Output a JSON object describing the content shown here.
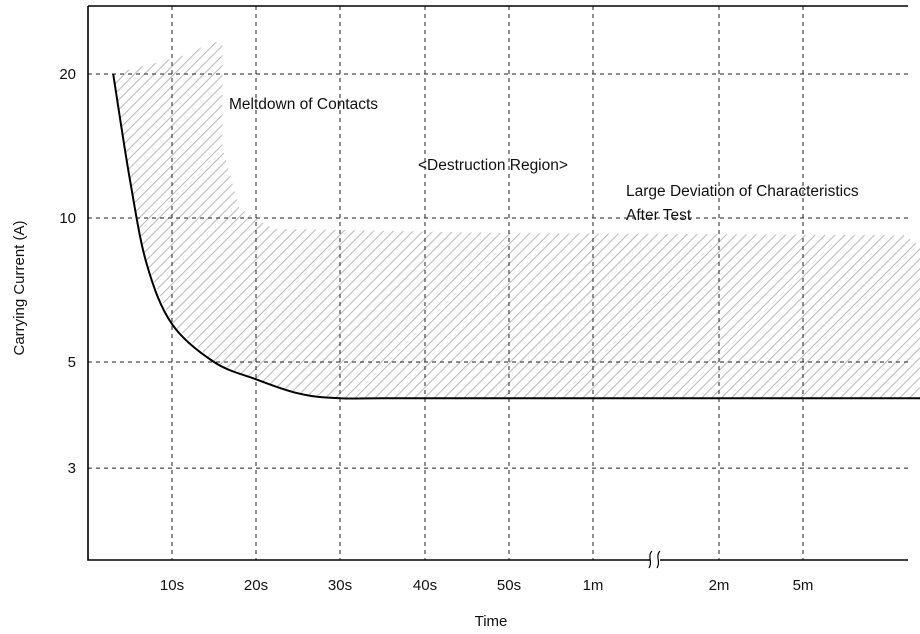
{
  "chart_data": {
    "type": "area",
    "xlabel": "Time",
    "ylabel": "Carrying Current (A)",
    "x_scale": "categorical (non-linear, axis break between 1m and 2m)",
    "y_scale": "log",
    "x_ticks": [
      "10s",
      "20s",
      "30s",
      "40s",
      "50s",
      "1m",
      "2m",
      "5m"
    ],
    "y_ticks": [
      3,
      5,
      10,
      20
    ],
    "axis_break_after": "1m",
    "grid": true,
    "annotations": [
      "Meltdown of Contacts",
      "<Destruction Region>",
      "Large Deviation of Characteristics",
      "After Test"
    ],
    "series": [
      {
        "kind": "limit-curve",
        "points": [
          {
            "x": 0.3,
            "y": 20
          },
          {
            "x": 0.5,
            "y": 12
          },
          {
            "x": 0.7,
            "y": 8
          },
          {
            "x": 1.0,
            "y": 6
          },
          {
            "x": 1.5,
            "y": 5
          },
          {
            "x": 2.0,
            "y": 4.6
          },
          {
            "x": 2.5,
            "y": 4.3
          },
          {
            "x": 3.0,
            "y": 4.2
          },
          {
            "x": 4.0,
            "y": 4.2
          },
          {
            "x": 9.5,
            "y": 4.2
          }
        ]
      },
      {
        "kind": "destruction-region-upper-boundary",
        "points": [
          {
            "x": 0.3,
            "y": 20
          },
          {
            "x": 1.2,
            "y": 22
          },
          {
            "x": 1.4,
            "y": 23
          },
          {
            "x": 1.6,
            "y": 23.5
          },
          {
            "x": 1.6,
            "y": 14
          },
          {
            "x": 1.8,
            "y": 10.5
          },
          {
            "x": 2.2,
            "y": 9.5
          },
          {
            "x": 5.0,
            "y": 9.3
          },
          {
            "x": 9.2,
            "y": 9.2
          },
          {
            "x": 9.5,
            "y": 8.5
          },
          {
            "x": 9.5,
            "y": 4.2
          }
        ]
      }
    ]
  }
}
